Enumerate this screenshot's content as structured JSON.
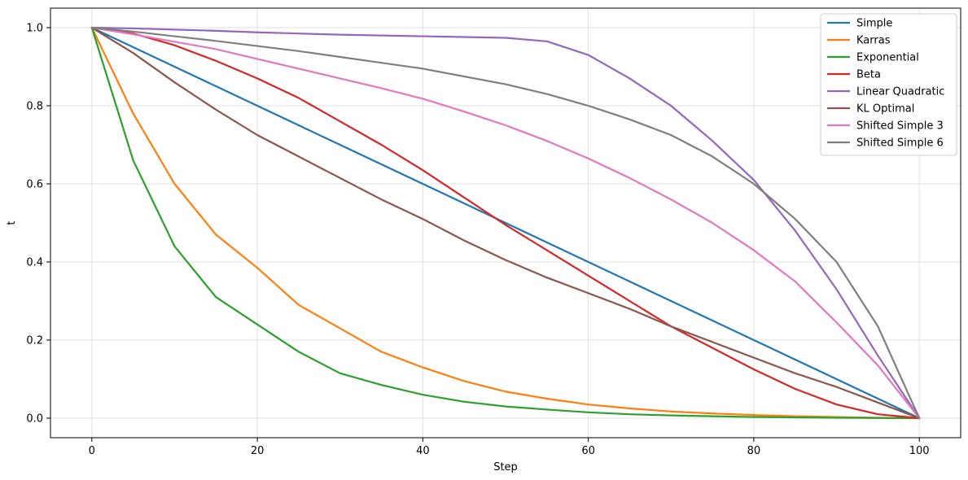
{
  "chart_data": {
    "type": "line",
    "title": "",
    "xlabel": "Step",
    "ylabel": "t",
    "xlim": [
      -5,
      105
    ],
    "ylim": [
      -0.05,
      1.05
    ],
    "grid": true,
    "legend_position": "top-right",
    "x_ticks": [
      0,
      20,
      40,
      60,
      80,
      100
    ],
    "x_tick_labels": [
      "0",
      "20",
      "40",
      "60",
      "80",
      "100"
    ],
    "y_ticks": [
      0.0,
      0.2,
      0.4,
      0.6,
      0.8,
      1.0
    ],
    "y_tick_labels": [
      "0.0",
      "0.2",
      "0.4",
      "0.6",
      "0.8",
      "1.0"
    ],
    "x": [
      0,
      5,
      10,
      15,
      20,
      25,
      30,
      35,
      40,
      45,
      50,
      55,
      60,
      65,
      70,
      75,
      80,
      85,
      90,
      95,
      100
    ],
    "series": [
      {
        "name": "Simple",
        "color": "#1f77b4",
        "values": [
          1.0,
          0.95,
          0.9,
          0.85,
          0.8,
          0.75,
          0.7,
          0.65,
          0.6,
          0.55,
          0.5,
          0.45,
          0.4,
          0.35,
          0.3,
          0.25,
          0.2,
          0.15,
          0.1,
          0.05,
          0.0
        ]
      },
      {
        "name": "Karras",
        "color": "#ff7f0e",
        "values": [
          1.0,
          0.78,
          0.6,
          0.47,
          0.385,
          0.29,
          0.23,
          0.17,
          0.13,
          0.095,
          0.068,
          0.05,
          0.035,
          0.025,
          0.017,
          0.012,
          0.008,
          0.005,
          0.003,
          0.001,
          0.0
        ]
      },
      {
        "name": "Exponential",
        "color": "#2ca02c",
        "values": [
          1.0,
          0.66,
          0.44,
          0.31,
          0.24,
          0.17,
          0.115,
          0.085,
          0.06,
          0.042,
          0.03,
          0.022,
          0.015,
          0.01,
          0.007,
          0.005,
          0.003,
          0.002,
          0.001,
          0.0005,
          0.0
        ]
      },
      {
        "name": "Beta",
        "color": "#d62728",
        "values": [
          1.0,
          0.985,
          0.955,
          0.915,
          0.87,
          0.82,
          0.76,
          0.7,
          0.635,
          0.565,
          0.495,
          0.43,
          0.365,
          0.3,
          0.235,
          0.18,
          0.125,
          0.075,
          0.035,
          0.01,
          0.0
        ]
      },
      {
        "name": "Linear Quadratic",
        "color": "#9467bd",
        "values": [
          1.0,
          0.998,
          0.995,
          0.992,
          0.988,
          0.985,
          0.982,
          0.98,
          0.978,
          0.976,
          0.974,
          0.965,
          0.93,
          0.87,
          0.8,
          0.71,
          0.61,
          0.48,
          0.33,
          0.16,
          0.0
        ]
      },
      {
        "name": "KL Optimal",
        "color": "#8c564b",
        "values": [
          1.0,
          0.935,
          0.86,
          0.79,
          0.725,
          0.67,
          0.615,
          0.56,
          0.51,
          0.455,
          0.405,
          0.36,
          0.32,
          0.28,
          0.235,
          0.195,
          0.155,
          0.115,
          0.08,
          0.04,
          0.0
        ]
      },
      {
        "name": "Shifted Simple 3",
        "color": "#e377c2",
        "values": [
          1.0,
          0.983,
          0.964,
          0.945,
          0.92,
          0.895,
          0.87,
          0.845,
          0.818,
          0.785,
          0.75,
          0.71,
          0.665,
          0.615,
          0.56,
          0.5,
          0.43,
          0.35,
          0.245,
          0.135,
          0.0
        ]
      },
      {
        "name": "Shifted Simple 6",
        "color": "#7f7f7f",
        "values": [
          1.0,
          0.99,
          0.978,
          0.966,
          0.953,
          0.94,
          0.925,
          0.91,
          0.895,
          0.875,
          0.855,
          0.83,
          0.8,
          0.765,
          0.725,
          0.67,
          0.6,
          0.51,
          0.4,
          0.235,
          0.0
        ]
      }
    ]
  }
}
